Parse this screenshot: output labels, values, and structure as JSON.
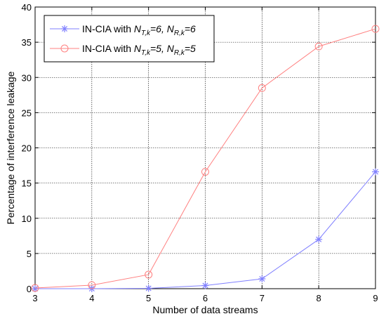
{
  "chart_data": {
    "type": "line",
    "title": "",
    "xlabel": "Number of data streams",
    "ylabel": "Percentage of interference leakage",
    "xlim": [
      3,
      9
    ],
    "ylim": [
      0,
      40
    ],
    "x_ticks": [
      "3",
      "4",
      "5",
      "6",
      "7",
      "8",
      "9"
    ],
    "y_ticks": [
      "0",
      "5",
      "10",
      "15",
      "20",
      "25",
      "30",
      "35",
      "40"
    ],
    "grid": true,
    "legend_position": "top-left",
    "x": [
      3,
      4,
      5,
      6,
      7,
      8,
      9
    ],
    "series": [
      {
        "name": "IN-CIA with N_{T,k}=6, N_{R,k}=6",
        "legend_prefix": "IN-CIA with ",
        "legend_parts": [
          {
            "t": "N",
            "style": "italic"
          },
          {
            "t": "T,k",
            "style": "sub"
          },
          {
            "t": "=6, ",
            "style": "italic"
          },
          {
            "t": "N",
            "style": "italic"
          },
          {
            "t": "R,k",
            "style": "sub"
          },
          {
            "t": "=6",
            "style": "italic"
          }
        ],
        "color": "#8080ff",
        "marker": "asterisk",
        "values": [
          0.0,
          0.0,
          0.05,
          0.45,
          1.4,
          7.0,
          16.6
        ]
      },
      {
        "name": "IN-CIA with N_{T,k}=5, N_{R,k}=5",
        "legend_prefix": "IN-CIA with ",
        "legend_parts": [
          {
            "t": "N",
            "style": "italic"
          },
          {
            "t": "T,k",
            "style": "sub"
          },
          {
            "t": "=5, ",
            "style": "italic"
          },
          {
            "t": "N",
            "style": "italic"
          },
          {
            "t": "R,k",
            "style": "sub"
          },
          {
            "t": "=5",
            "style": "italic"
          }
        ],
        "color": "#ff8080",
        "marker": "circle",
        "values": [
          0.1,
          0.5,
          2.0,
          16.6,
          28.5,
          34.4,
          36.9
        ]
      }
    ]
  }
}
